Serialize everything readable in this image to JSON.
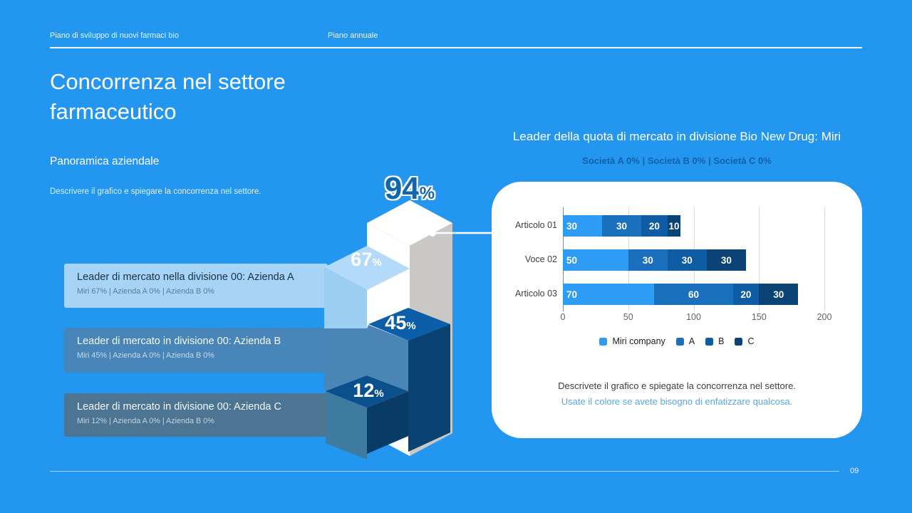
{
  "page": {
    "background_color": "#2397f0",
    "page_number": "09"
  },
  "header": {
    "left_label": "Piano di sviluppo di nuovi farmaci bio",
    "right_label": "Piano annuale"
  },
  "left_panel": {
    "title": "Concorrenza nel settore farmaceutico",
    "section_title": "Panoramica aziendale",
    "description": "Descrivere il grafico e spiegare la concorrenza nel settore.",
    "cards": [
      {
        "title": "Leader di mercato nella divisione 00: Azienda A",
        "subtitle": "Miri 67% | Azienda A 0% | Azienda B 0%"
      },
      {
        "title": "Leader di mercato in divisione 00: Azienda B",
        "subtitle": "Miri 45% | Azienda A 0% | Azienda B 0%"
      },
      {
        "title": "Leader di mercato in divisione 00: Azienda C",
        "subtitle": "Miri 12% | Azienda A 0% | Azienda B 0%"
      }
    ]
  },
  "pyramid": {
    "steps": [
      {
        "num": "94",
        "sign": "%"
      },
      {
        "num": "67",
        "sign": "%"
      },
      {
        "num": "45",
        "sign": "%"
      },
      {
        "num": "12",
        "sign": "%"
      }
    ],
    "colors": {
      "column_face": "#ffffff",
      "column_side": "#c9c8c5",
      "step67_top": "#b3daf9",
      "step45_top": "#0b5ea7",
      "step12_top": "#09508c",
      "steel_face": "#4a85b6",
      "dark_side": "#0a4273"
    }
  },
  "right_panel": {
    "title": "Leader della quota di mercato in divisione Bio New Drug: Miri",
    "subtitle": "Società A 0% | Società B 0% | Società C 0%",
    "note_line1": "Descrivete il grafico e spiegate la concorrenza nel settore.",
    "note_line2": "Usate il colore se avete bisogno di enfatizzare qualcosa."
  },
  "chart_data": {
    "type": "bar",
    "orientation": "horizontal",
    "stacked": true,
    "title": "Leader della quota di mercato in divisione Bio New Drug: Miri",
    "categories": [
      "Articolo 01",
      "Voce 02",
      "Articolo 03"
    ],
    "series": [
      {
        "name": "Miri company",
        "color": "#2e9cf4",
        "values": [
          30,
          50,
          70
        ]
      },
      {
        "name": "A",
        "color": "#1b70bd",
        "values": [
          30,
          30,
          60
        ]
      },
      {
        "name": "B",
        "color": "#0d5ca4",
        "values": [
          20,
          30,
          20
        ]
      },
      {
        "name": "C",
        "color": "#0b4377",
        "values": [
          10,
          30,
          30
        ]
      }
    ],
    "xlim": [
      0,
      200
    ],
    "x_ticks": [
      0,
      50,
      100,
      150,
      200
    ],
    "grid": true,
    "legend_position": "bottom"
  }
}
